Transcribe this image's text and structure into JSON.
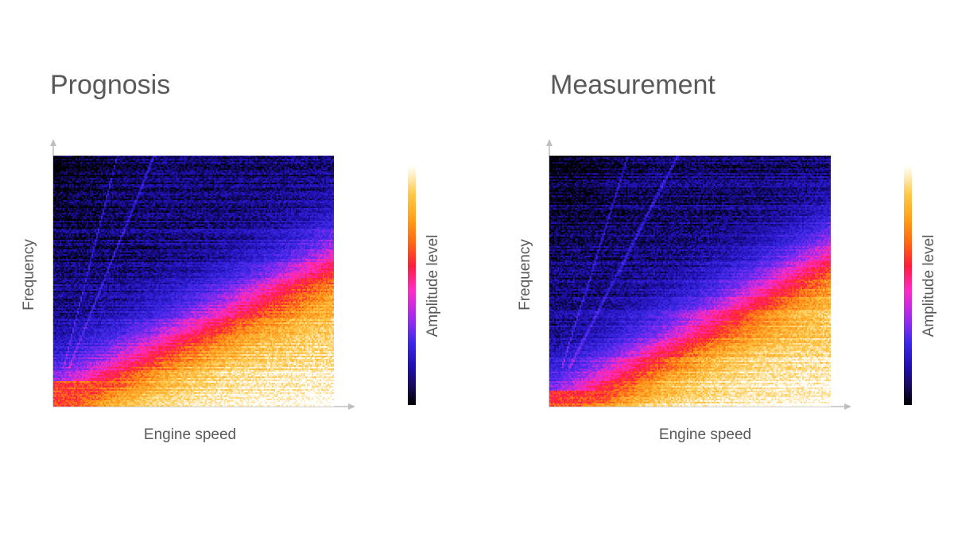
{
  "charts": {
    "prognosis": {
      "title": "Prognosis",
      "xlabel": "Engine speed",
      "ylabel": "Frequency",
      "colorbar_label": "Amplitude level"
    },
    "measurement": {
      "title": "Measurement",
      "xlabel": "Engine speed",
      "ylabel": "Frequency",
      "colorbar_label": "Amplitude level"
    }
  },
  "chart_data": [
    {
      "type": "heatmap",
      "title": "Prognosis",
      "xlabel": "Engine speed",
      "ylabel": "Frequency",
      "colorbar_label": "Amplitude level",
      "colormap": [
        "#000000",
        "#1f10b0",
        "#3c28e6",
        "#8a2cf0",
        "#ff2cc4",
        "#ff1d3a",
        "#ff8a12",
        "#ffc94a",
        "#ffffff"
      ],
      "x_range": [
        0,
        1
      ],
      "y_range": [
        0,
        1
      ],
      "value_range": [
        0,
        1
      ],
      "description_model": {
        "boundary_slope": 0.55,
        "boundary_offset": 0.05,
        "band_width": 0.22,
        "low_freq_band": 0.1,
        "order_line_slopes": [
          4.4,
          2.8
        ]
      }
    },
    {
      "type": "heatmap",
      "title": "Measurement",
      "xlabel": "Engine speed",
      "ylabel": "Frequency",
      "colorbar_label": "Amplitude level",
      "colormap": [
        "#000000",
        "#1f10b0",
        "#3c28e6",
        "#8a2cf0",
        "#ff2cc4",
        "#ff1d3a",
        "#ff8a12",
        "#ffc94a",
        "#ffffff"
      ],
      "x_range": [
        0,
        1
      ],
      "y_range": [
        0,
        1
      ],
      "value_range": [
        0,
        1
      ],
      "description_model": {
        "boundary_slope": 0.62,
        "boundary_offset": 0.0,
        "band_width": 0.22,
        "low_freq_band": 0.06,
        "order_line_slopes": [
          3.6,
          2.2
        ]
      }
    }
  ]
}
